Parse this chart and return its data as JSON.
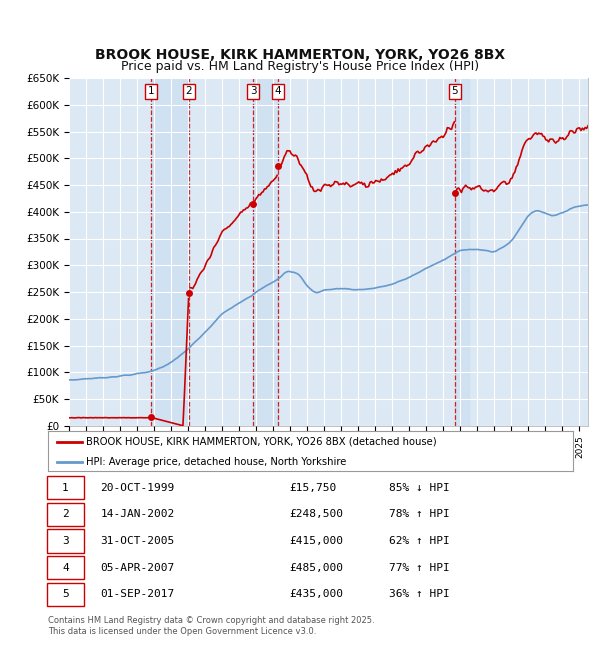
{
  "title": "BROOK HOUSE, KIRK HAMMERTON, YORK, YO26 8BX",
  "subtitle": "Price paid vs. HM Land Registry's House Price Index (HPI)",
  "title_fontsize": 10,
  "subtitle_fontsize": 9,
  "ylim": [
    0,
    650000
  ],
  "yticks": [
    0,
    50000,
    100000,
    150000,
    200000,
    250000,
    300000,
    350000,
    400000,
    450000,
    500000,
    550000,
    600000,
    650000
  ],
  "ytick_labels": [
    "£0",
    "£50K",
    "£100K",
    "£150K",
    "£200K",
    "£250K",
    "£300K",
    "£350K",
    "£400K",
    "£450K",
    "£500K",
    "£550K",
    "£600K",
    "£650K"
  ],
  "background_color": "#ffffff",
  "plot_bg_color": "#dce9f5",
  "grid_color": "#ffffff",
  "transactions": [
    {
      "num": 1,
      "date_label": "20-OCT-1999",
      "x_year": 1999.8,
      "price": 15750,
      "pct": "85%",
      "dir": "↓"
    },
    {
      "num": 2,
      "date_label": "14-JAN-2002",
      "x_year": 2002.04,
      "price": 248500,
      "pct": "78%",
      "dir": "↑"
    },
    {
      "num": 3,
      "date_label": "31-OCT-2005",
      "x_year": 2005.83,
      "price": 415000,
      "pct": "62%",
      "dir": "↑"
    },
    {
      "num": 4,
      "date_label": "05-APR-2007",
      "x_year": 2007.27,
      "price": 485000,
      "pct": "77%",
      "dir": "↑"
    },
    {
      "num": 5,
      "date_label": "01-SEP-2017",
      "x_year": 2017.67,
      "price": 435000,
      "pct": "36%",
      "dir": "↑"
    }
  ],
  "sale_color": "#cc0000",
  "hpi_color": "#6699cc",
  "legend_entries": [
    "BROOK HOUSE, KIRK HAMMERTON, YORK, YO26 8BX (detached house)",
    "HPI: Average price, detached house, North Yorkshire"
  ],
  "footer": "Contains HM Land Registry data © Crown copyright and database right 2025.\nThis data is licensed under the Open Government Licence v3.0.",
  "table_rows": [
    [
      "1",
      "20-OCT-1999",
      "£15,750",
      "85% ↓ HPI"
    ],
    [
      "2",
      "14-JAN-2002",
      "£248,500",
      "78% ↑ HPI"
    ],
    [
      "3",
      "31-OCT-2005",
      "£415,000",
      "62% ↑ HPI"
    ],
    [
      "4",
      "05-APR-2007",
      "£485,000",
      "77% ↑ HPI"
    ],
    [
      "5",
      "01-SEP-2017",
      "£435,000",
      "36% ↑ HPI"
    ]
  ],
  "xmin": 1995,
  "xmax": 2025.5
}
